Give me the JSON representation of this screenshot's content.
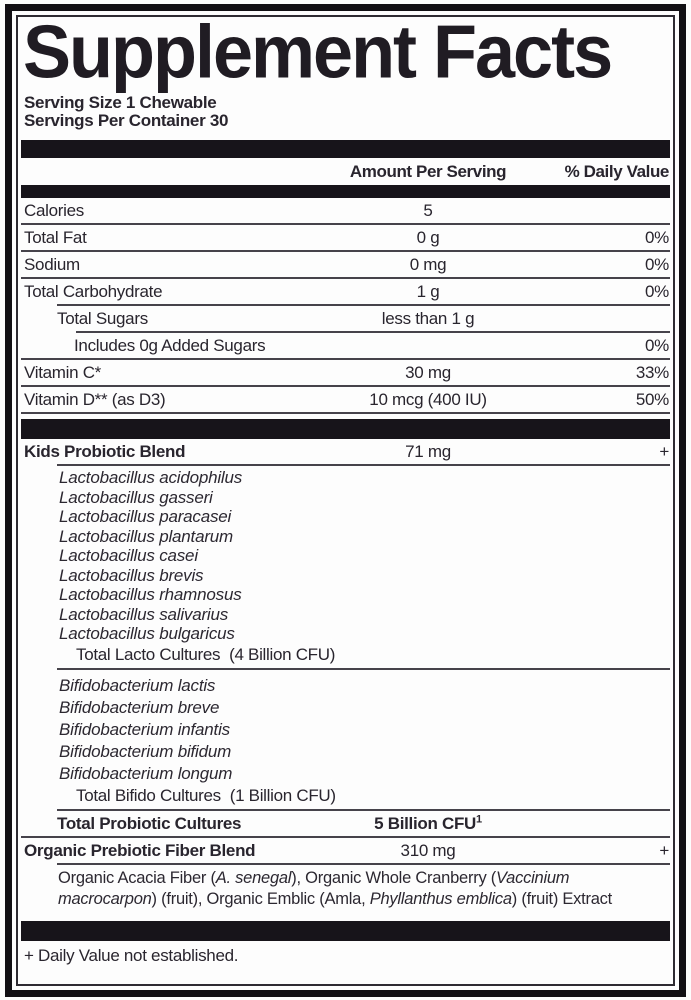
{
  "header": {
    "title": "Supplement Facts",
    "serving_size": "Serving Size 1 Chewable",
    "servings_per_container": "Servings Per Container 30"
  },
  "columns": {
    "amount": "Amount Per Serving",
    "daily_value": "% Daily Value"
  },
  "nutrition_rows": [
    {
      "label": "Calories",
      "amount": "5",
      "dv": ""
    },
    {
      "label": "Total Fat",
      "amount": "0 g",
      "dv": "0%"
    },
    {
      "label": "Sodium",
      "amount": "0 mg",
      "dv": "0%"
    },
    {
      "label": "Total Carbohydrate",
      "amount": "1 g",
      "dv": "0%"
    },
    {
      "label": "Total Sugars",
      "amount": "less than 1 g",
      "dv": ""
    },
    {
      "label": "Includes 0g Added Sugars",
      "amount": "",
      "dv": "0%"
    },
    {
      "label": "Vitamin C*",
      "amount": "30 mg",
      "dv": "33%"
    },
    {
      "label": "Vitamin D** (as D3)",
      "amount": "10 mcg (400 IU)",
      "dv": "50%"
    }
  ],
  "probiotic": {
    "blend_row": {
      "label": "Kids Probiotic Blend",
      "amount": "71 mg",
      "dv": "+"
    },
    "lacto_species": [
      "Lactobacillus acidophilus",
      "Lactobacillus gasseri",
      "Lactobacillus paracasei",
      "Lactobacillus plantarum",
      "Lactobacillus casei",
      "Lactobacillus brevis",
      "Lactobacillus rhamnosus",
      "Lactobacillus salivarius",
      "Lactobacillus bulgaricus"
    ],
    "lacto_total": "Total Lacto Cultures  (4 Billion CFU)",
    "bifido_species": [
      "Bifidobacterium lactis",
      "Bifidobacterium breve",
      "Bifidobacterium infantis",
      "Bifidobacterium bifidum",
      "Bifidobacterium longum"
    ],
    "bifido_total": "Total Bifido Cultures  (1 Billion CFU)",
    "total_row": {
      "label": "Total Probiotic Cultures",
      "amount": "5 Billion CFU",
      "amount_sup": "1",
      "dv": ""
    }
  },
  "prebiotic": {
    "row": {
      "label": "Organic Prebiotic Fiber Blend",
      "amount": "310 mg",
      "dv": "+"
    },
    "description_segments": [
      "Organic Acacia Fiber (",
      "A. senegal",
      "), Organic Whole Cranberry (",
      "Vaccinium macrocarpon",
      ") (fruit), Organic Emblic (Amla, ",
      "Phyllanthus emblica",
      ") (fruit) Extract"
    ]
  },
  "footnote": "+ Daily Value not established.",
  "colors": {
    "text": "#29252e",
    "bar": "#17141a",
    "line": "#46434b",
    "border": "#121014",
    "background": "#fdfdfd"
  }
}
